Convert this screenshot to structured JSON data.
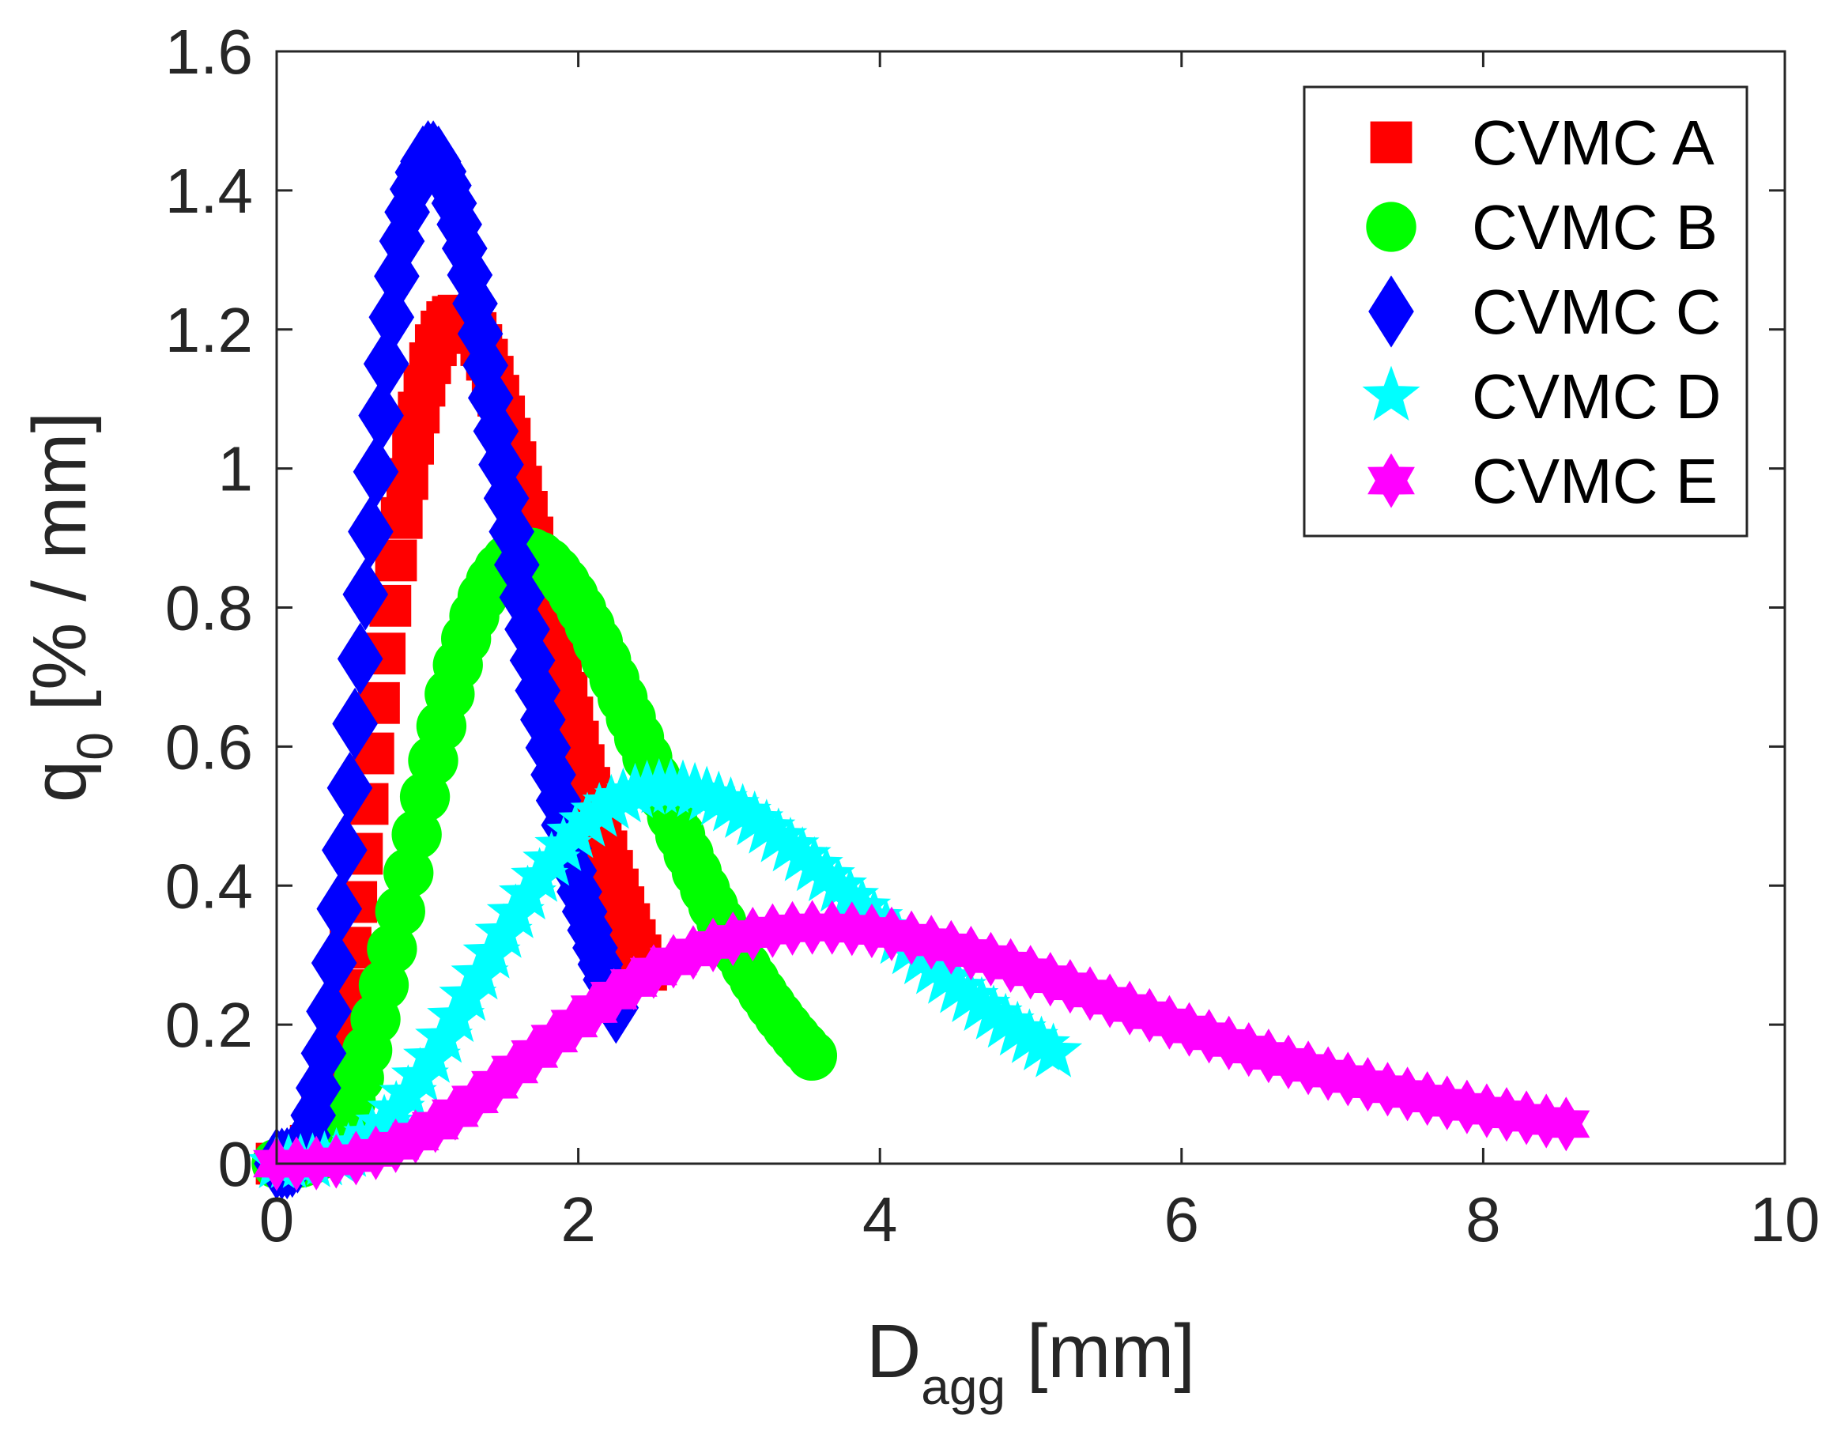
{
  "chart_data": {
    "type": "scatter",
    "xlabel": {
      "main": "D",
      "sub": "agg",
      "suffix": " [mm]"
    },
    "ylabel": {
      "main": "q",
      "sub": "0",
      "suffix": " [% / mm]"
    },
    "xlim": [
      0,
      10
    ],
    "ylim": [
      0,
      1.6
    ],
    "xticks": [
      0,
      2,
      4,
      6,
      8,
      10
    ],
    "yticks": [
      0,
      0.2,
      0.4,
      0.6,
      0.8,
      1,
      1.2,
      1.4,
      1.6
    ],
    "xtick_labels": [
      "0",
      "2",
      "4",
      "6",
      "8",
      "10"
    ],
    "ytick_labels": [
      "0",
      "0.2",
      "0.4",
      "0.6",
      "0.8",
      "1",
      "1.2",
      "1.4",
      "1.6"
    ],
    "grid": false,
    "legend_position": "top-right",
    "series": [
      {
        "name": "CVMC A",
        "marker": "square",
        "color": "#ff0000",
        "x_min": 0,
        "x_max": 2.45,
        "peak_x": 1.2,
        "peak_y": 1.22,
        "shape": 4.5
      },
      {
        "name": "CVMC B",
        "marker": "circle",
        "color": "#00ff00",
        "x_min": 0,
        "x_max": 3.55,
        "peak_x": 1.65,
        "peak_y": 0.88,
        "shape": 4.5
      },
      {
        "name": "CVMC C",
        "marker": "diamond",
        "color": "#0000ff",
        "x_min": 0,
        "x_max": 2.25,
        "peak_x": 1.02,
        "peak_y": 1.45,
        "shape": 4.5
      },
      {
        "name": "CVMC D",
        "marker": "pentagram",
        "color": "#00ffff",
        "x_min": 0,
        "x_max": 5.15,
        "peak_x": 2.58,
        "peak_y": 0.54,
        "shape": 4.0
      },
      {
        "name": "CVMC E",
        "marker": "hexagram",
        "color": "#ff00ff",
        "x_min": 0,
        "x_max": 8.55,
        "peak_x": 3.6,
        "peak_y": 0.34,
        "shape": 3.5
      }
    ]
  }
}
